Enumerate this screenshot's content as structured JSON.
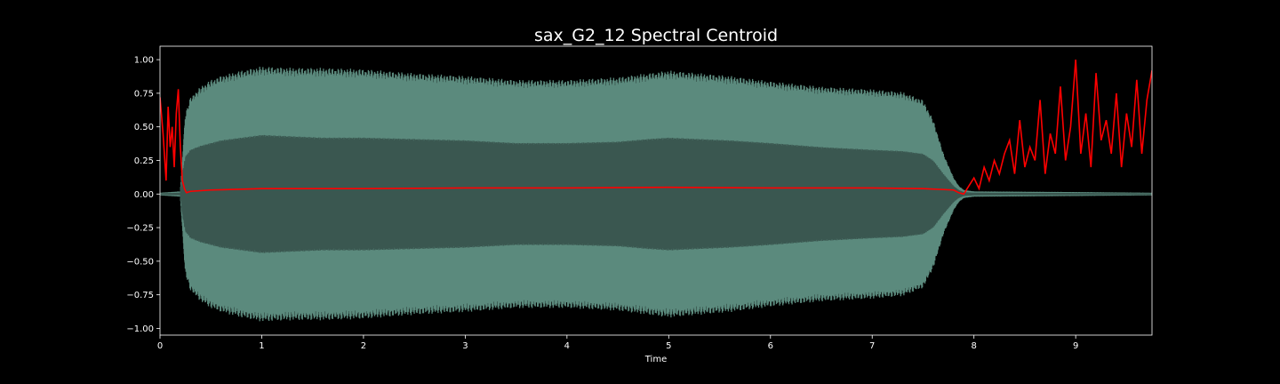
{
  "chart_data": {
    "type": "line",
    "title": "sax_G2_12 Spectral Centroid",
    "xlabel": "Time",
    "ylabel": "",
    "xlim": [
      0,
      9.75
    ],
    "ylim": [
      -1.05,
      1.1
    ],
    "xticks": [
      0,
      1,
      2,
      3,
      4,
      5,
      6,
      7,
      8,
      9
    ],
    "yticks": [
      -1.0,
      -0.75,
      -0.5,
      -0.25,
      0.0,
      0.25,
      0.5,
      0.75,
      1.0
    ],
    "ytick_labels": [
      "−1.00",
      "−0.75",
      "−0.50",
      "−0.25",
      "0.00",
      "0.25",
      "0.50",
      "0.75",
      "1.00"
    ],
    "xtick_labels": [
      "0",
      "1",
      "2",
      "3",
      "4",
      "5",
      "6",
      "7",
      "8",
      "9"
    ],
    "grid": false,
    "colors": {
      "background": "#000000",
      "waveform_outer": "#5b8a7d",
      "waveform_inner": "#3a5750",
      "waveform_dark_edge": "#22332f",
      "centroid": "#ff0000",
      "axes": "#ffffff"
    },
    "series": [
      {
        "kind": "waveform-envelope",
        "x": [
          0.0,
          0.2,
          0.22,
          0.25,
          0.3,
          0.4,
          0.5,
          0.6,
          0.8,
          1.0,
          1.3,
          1.6,
          2.0,
          2.5,
          3.0,
          3.5,
          4.0,
          4.5,
          4.8,
          5.0,
          5.3,
          5.6,
          6.0,
          6.5,
          7.0,
          7.3,
          7.5,
          7.6,
          7.7,
          7.8,
          7.85,
          7.9,
          8.0,
          9.0,
          9.75
        ],
        "outer": [
          0.01,
          0.02,
          0.25,
          0.6,
          0.72,
          0.8,
          0.85,
          0.88,
          0.92,
          0.95,
          0.94,
          0.94,
          0.93,
          0.9,
          0.88,
          0.85,
          0.85,
          0.87,
          0.9,
          0.92,
          0.9,
          0.88,
          0.84,
          0.8,
          0.78,
          0.76,
          0.7,
          0.55,
          0.3,
          0.12,
          0.06,
          0.03,
          0.02,
          0.015,
          0.01
        ],
        "inner": [
          0.005,
          0.01,
          0.15,
          0.28,
          0.33,
          0.36,
          0.38,
          0.4,
          0.42,
          0.44,
          0.43,
          0.42,
          0.42,
          0.41,
          0.4,
          0.38,
          0.38,
          0.39,
          0.41,
          0.42,
          0.41,
          0.4,
          0.38,
          0.35,
          0.33,
          0.32,
          0.3,
          0.25,
          0.15,
          0.06,
          0.03,
          0.015,
          0.01,
          0.008,
          0.005
        ]
      },
      {
        "kind": "spectral-centroid",
        "x": [
          0.0,
          0.03,
          0.06,
          0.08,
          0.1,
          0.12,
          0.14,
          0.16,
          0.18,
          0.2,
          0.22,
          0.24,
          0.26,
          0.3,
          0.5,
          1.0,
          1.5,
          2.0,
          3.0,
          4.0,
          5.0,
          6.0,
          7.0,
          7.5,
          7.8,
          7.85,
          7.9,
          7.95,
          8.0,
          8.05,
          8.1,
          8.15,
          8.2,
          8.25,
          8.3,
          8.35,
          8.4,
          8.45,
          8.5,
          8.55,
          8.6,
          8.65,
          8.7,
          8.75,
          8.8,
          8.85,
          8.9,
          8.95,
          9.0,
          9.05,
          9.1,
          9.15,
          9.2,
          9.25,
          9.3,
          9.35,
          9.4,
          9.45,
          9.5,
          9.55,
          9.6,
          9.65,
          9.7,
          9.75
        ],
        "y": [
          0.72,
          0.45,
          0.1,
          0.65,
          0.35,
          0.5,
          0.2,
          0.6,
          0.78,
          0.35,
          0.1,
          0.04,
          0.01,
          0.02,
          0.03,
          0.04,
          0.04,
          0.04,
          0.045,
          0.045,
          0.05,
          0.045,
          0.045,
          0.04,
          0.03,
          0.01,
          0.0,
          0.06,
          0.12,
          0.04,
          0.2,
          0.1,
          0.25,
          0.15,
          0.3,
          0.4,
          0.15,
          0.55,
          0.2,
          0.35,
          0.25,
          0.7,
          0.15,
          0.45,
          0.3,
          0.8,
          0.25,
          0.5,
          1.0,
          0.3,
          0.6,
          0.2,
          0.9,
          0.4,
          0.55,
          0.3,
          0.75,
          0.2,
          0.6,
          0.35,
          0.85,
          0.3,
          0.7,
          0.92
        ]
      }
    ]
  }
}
